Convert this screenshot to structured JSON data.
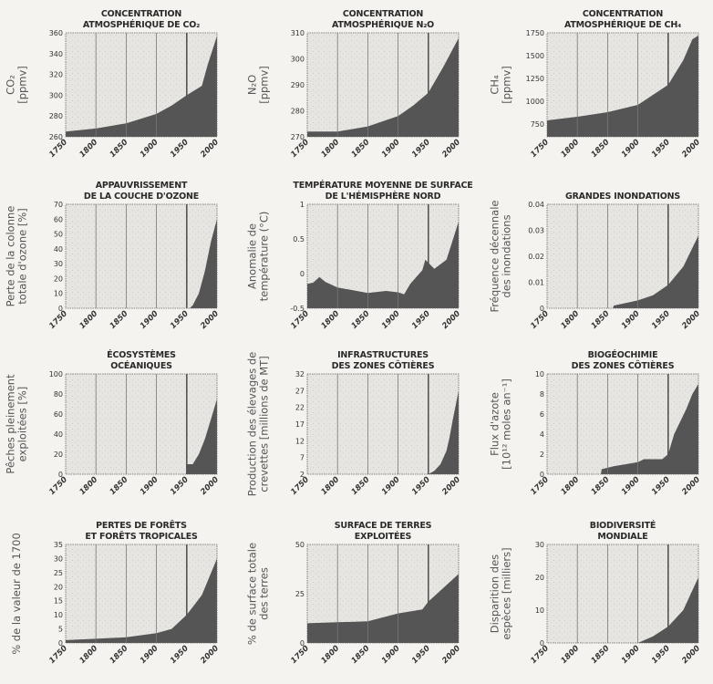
{
  "colors": {
    "background": "#f4f3ef",
    "plot_bg": "#e6e5e1",
    "fill": "#555555",
    "grid": "#777777"
  },
  "chart_data": [
    {
      "type": "area",
      "title": [
        "CONCENTRATION",
        "ATMOSPHÉRIQUE DE CO₂"
      ],
      "ylabel": [
        "CO₂",
        "[ppmv]"
      ],
      "ylim": [
        260,
        360
      ],
      "yticks": [
        "260",
        "280",
        "300",
        "320",
        "340",
        "360"
      ],
      "xticks": [
        "1750",
        "1800",
        "1850",
        "1900",
        "1950",
        "2000"
      ],
      "x": [
        1750,
        1800,
        1850,
        1900,
        1925,
        1950,
        1975,
        1985,
        2000
      ],
      "y": [
        265,
        268,
        273,
        282,
        290,
        300,
        309,
        330,
        357
      ]
    },
    {
      "type": "area",
      "title": [
        "CONCENTRATION",
        "ATMOSPHÉRIQUE N₂O"
      ],
      "ylabel": [
        "N₂O",
        "[ppmv]"
      ],
      "ylim": [
        270,
        310
      ],
      "yticks": [
        "270",
        "280",
        "290",
        "300",
        "310"
      ],
      "xticks": [
        "1750",
        "1800",
        "1850",
        "1900",
        "1950",
        "2000"
      ],
      "x": [
        1750,
        1800,
        1850,
        1900,
        1925,
        1950,
        1975,
        2000
      ],
      "y": [
        272,
        272,
        274,
        278,
        282,
        287,
        297,
        308
      ]
    },
    {
      "type": "area",
      "title": [
        "CONCENTRATION",
        "ATMOSPHÉRIQUE DE CH₄"
      ],
      "ylabel": [
        "CH₄",
        "[ppmv]"
      ],
      "ylim": [
        610,
        1750
      ],
      "yticks": [
        "750",
        "1000",
        "1250",
        "1500",
        "1750"
      ],
      "xticks": [
        "1750",
        "1800",
        "1850",
        "1900",
        "1950",
        "2000"
      ],
      "x": [
        1750,
        1800,
        1850,
        1900,
        1950,
        1975,
        1990,
        2000
      ],
      "y": [
        790,
        830,
        880,
        960,
        1180,
        1450,
        1680,
        1720
      ]
    },
    {
      "type": "area",
      "title": [
        "APPAUVRISSEMENT",
        "DE LA COUCHE D'OZONE"
      ],
      "ylabel": [
        "Perte de la colonne",
        "totale d'ozone  [%]"
      ],
      "ylim": [
        0,
        70
      ],
      "yticks": [
        "0",
        "10",
        "20",
        "30",
        "40",
        "50",
        "60",
        "70"
      ],
      "xticks": [
        "1750",
        "1800",
        "1850",
        "1900",
        "1950",
        "2000"
      ],
      "x": [
        1750,
        1955,
        1960,
        1970,
        1980,
        1990,
        2000
      ],
      "y": [
        0,
        0,
        2,
        10,
        25,
        45,
        60
      ]
    },
    {
      "type": "area",
      "title": [
        "TEMPÉRATURE MOYENNE DE SURFACE",
        "DE L'HÉMISPHÈRE NORD"
      ],
      "ylabel": [
        "Anomalie de",
        "température  (°C)"
      ],
      "ylim": [
        -0.5,
        1
      ],
      "yticks": [
        "-0.5",
        "0",
        "0.5",
        "1"
      ],
      "xticks": [
        "1750",
        "1800",
        "1850",
        "1900",
        "1950",
        "2000"
      ],
      "x": [
        1750,
        1760,
        1770,
        1780,
        1800,
        1850,
        1880,
        1900,
        1910,
        1920,
        1940,
        1945,
        1960,
        1980,
        2000
      ],
      "y": [
        -0.15,
        -0.13,
        -0.05,
        -0.12,
        -0.2,
        -0.28,
        -0.25,
        -0.27,
        -0.3,
        -0.15,
        0.05,
        0.2,
        0.07,
        0.2,
        0.75
      ]
    },
    {
      "type": "area",
      "title": [
        "",
        "GRANDES INONDATIONS"
      ],
      "ylabel": [
        "Fréquence décennale",
        "des inondations"
      ],
      "ylim": [
        0,
        0.04
      ],
      "yticks": [
        "0",
        "0.01",
        "0.02",
        "0.03",
        "0.04"
      ],
      "xticks": [
        "1750",
        "1800",
        "1850",
        "1900",
        "1950",
        "2000"
      ],
      "x": [
        1750,
        1859,
        1860,
        1900,
        1925,
        1950,
        1975,
        2000
      ],
      "y": [
        0,
        0,
        0.001,
        0.003,
        0.005,
        0.009,
        0.016,
        0.028
      ]
    },
    {
      "type": "area",
      "title": [
        "ÉCOSYSTÈMES",
        "OCÉANIQUES"
      ],
      "ylabel": [
        "Pêches pleinement",
        "exploitées  [%]"
      ],
      "ylim": [
        0,
        100
      ],
      "yticks": [
        "0",
        "20",
        "40",
        "60",
        "80",
        "100"
      ],
      "xticks": [
        "1750",
        "1800",
        "1850",
        "1900",
        "1950",
        "2000"
      ],
      "x": [
        1750,
        1949,
        1950,
        1960,
        1970,
        1980,
        1990,
        2000
      ],
      "y": [
        0,
        0,
        10,
        10,
        20,
        35,
        55,
        75
      ]
    },
    {
      "type": "area",
      "title": [
        "INFRASTRUCTURES",
        "DES ZONES CÔTIÈRES"
      ],
      "ylabel": [
        "Production des élevages de",
        "crevettes [millions de MT]"
      ],
      "ylim": [
        2,
        32
      ],
      "yticks": [
        "2",
        "7",
        "12",
        "17",
        "22",
        "27",
        "32"
      ],
      "xticks": [
        "1750",
        "1800",
        "1850",
        "1900",
        "1950",
        "2000"
      ],
      "x": [
        1750,
        1950,
        1960,
        1970,
        1980,
        1985,
        1990,
        2000
      ],
      "y": [
        2,
        2,
        3,
        5,
        9,
        13,
        18,
        27
      ]
    },
    {
      "type": "area",
      "title": [
        "BIOGÉOCHIMIE",
        "DES ZONES CÔTIÈRES"
      ],
      "ylabel": [
        "Flux d'azote",
        "[10¹² moles an⁻¹]"
      ],
      "ylim": [
        0,
        10
      ],
      "yticks": [
        "0",
        "2",
        "4",
        "6",
        "8",
        "10"
      ],
      "xticks": [
        "1750",
        "1800",
        "1850",
        "1900",
        "1950",
        "2000"
      ],
      "x": [
        1750,
        1839,
        1840,
        1860,
        1900,
        1910,
        1940,
        1950,
        1960,
        1980,
        1990,
        2000
      ],
      "y": [
        0,
        0,
        0.5,
        0.8,
        1.2,
        1.5,
        1.5,
        2,
        4,
        6.5,
        8,
        9
      ]
    },
    {
      "type": "area",
      "title": [
        "PERTES DE FORÊTS",
        "ET FORÊTS TROPICALES"
      ],
      "ylabel": [
        "% de la valeur de 1700"
      ],
      "ylim": [
        0,
        35
      ],
      "yticks": [
        "0",
        "5",
        "10",
        "15",
        "20",
        "25",
        "30",
        "35"
      ],
      "xticks": [
        "1750",
        "1800",
        "1850",
        "1900",
        "1950",
        "2000"
      ],
      "x": [
        1750,
        1800,
        1850,
        1900,
        1925,
        1950,
        1975,
        2000
      ],
      "y": [
        1,
        1.5,
        2,
        3.5,
        5,
        10,
        17,
        30
      ]
    },
    {
      "type": "area",
      "title": [
        "SURFACE DE TERRES",
        "EXPLOITÉES"
      ],
      "ylabel": [
        "% de surface totale",
        "des terres"
      ],
      "ylim": [
        0,
        50
      ],
      "yticks": [
        "0",
        "25",
        "50"
      ],
      "xticks": [
        "1750",
        "1800",
        "1850",
        "1900",
        "1950",
        "2000"
      ],
      "x": [
        1750,
        1800,
        1850,
        1900,
        1940,
        1950,
        1975,
        2000
      ],
      "y": [
        10,
        10.5,
        11,
        15,
        17,
        21,
        28,
        35
      ]
    },
    {
      "type": "area",
      "title": [
        "BIODIVERSITÉ",
        "MONDIALE"
      ],
      "ylabel": [
        "Disparition des",
        "espèces [milliers]"
      ],
      "ylim": [
        0,
        30
      ],
      "yticks": [
        "0",
        "10",
        "20",
        "30"
      ],
      "xticks": [
        "1750",
        "1800",
        "1850",
        "1900",
        "1950",
        "2000"
      ],
      "x": [
        1750,
        1900,
        1925,
        1950,
        1975,
        2000
      ],
      "y": [
        0,
        0,
        2,
        5,
        10,
        20
      ]
    }
  ]
}
